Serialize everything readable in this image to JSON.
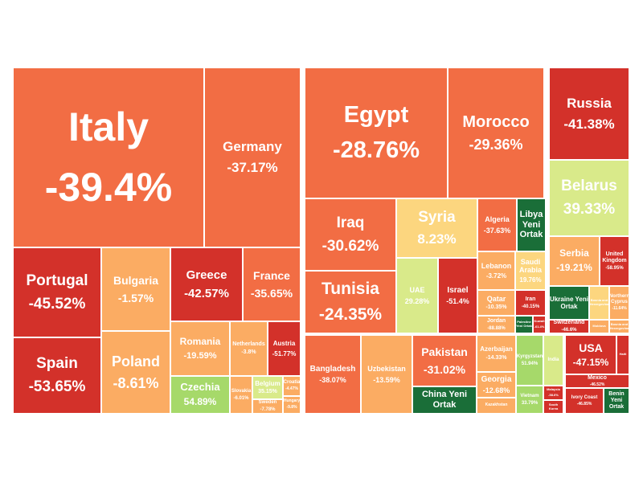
{
  "colors": {
    "dark_red": "#d3312a",
    "red_orange": "#f26d44",
    "orange": "#fbac63",
    "light_orange": "#fcd67f",
    "light_green": "#d9ea8a",
    "green": "#a6d96a",
    "dark_green": "#1a6e38",
    "background": "#ffffff"
  },
  "chart_data": {
    "type": "treemap",
    "groups": [
      {
        "items": [
          {
            "name": "Italy",
            "value": "-39.4%",
            "color": "red_orange"
          },
          {
            "name": "Germany",
            "value": "-37.17%",
            "color": "red_orange"
          },
          {
            "name": "Portugal",
            "value": "-45.52%",
            "color": "dark_red"
          },
          {
            "name": "Spain",
            "value": "-53.65%",
            "color": "dark_red"
          },
          {
            "name": "Bulgaria",
            "value": "-1.57%",
            "color": "orange"
          },
          {
            "name": "Poland",
            "value": "-8.61%",
            "color": "orange"
          },
          {
            "name": "Greece",
            "value": "-42.57%",
            "color": "dark_red"
          },
          {
            "name": "France",
            "value": "-35.65%",
            "color": "red_orange"
          },
          {
            "name": "Romania",
            "value": "-19.59%",
            "color": "orange"
          },
          {
            "name": "Netherlands",
            "value": "-3.8%",
            "color": "orange"
          },
          {
            "name": "Austria",
            "value": "-51.77%",
            "color": "dark_red"
          },
          {
            "name": "Czechia",
            "value": "54.89%",
            "color": "green"
          },
          {
            "name": "Slovakia",
            "value": "-6.01%",
            "color": "orange"
          },
          {
            "name": "Belgium",
            "value": "35.15%",
            "color": "light_green"
          },
          {
            "name": "Sweden",
            "value": "-7.78%",
            "color": "orange"
          },
          {
            "name": "Croatia",
            "value": "-4.47%",
            "color": "orange"
          },
          {
            "name": "Hungary",
            "value": "-9.8%",
            "color": "orange"
          }
        ]
      },
      {
        "items": [
          {
            "name": "Egypt",
            "value": "-28.76%",
            "color": "red_orange"
          },
          {
            "name": "Morocco",
            "value": "-29.36%",
            "color": "red_orange"
          },
          {
            "name": "Iraq",
            "value": "-30.62%",
            "color": "red_orange"
          },
          {
            "name": "Tunisia",
            "value": "-24.35%",
            "color": "red_orange"
          },
          {
            "name": "Syria",
            "value": "8.23%",
            "color": "light_orange"
          },
          {
            "name": "UAE",
            "value": "29.28%",
            "color": "light_green"
          },
          {
            "name": "Israel",
            "value": "-51.4%",
            "color": "dark_red"
          },
          {
            "name": "Algeria",
            "value": "-37.63%",
            "color": "red_orange"
          },
          {
            "name": "Libya Yeni Ortak",
            "value": "",
            "color": "dark_green"
          },
          {
            "name": "Lebanon",
            "value": "-3.72%",
            "color": "orange"
          },
          {
            "name": "Saudi Arabia",
            "value": "19.76%",
            "color": "light_orange"
          },
          {
            "name": "Qatar",
            "value": "-10.35%",
            "color": "orange"
          },
          {
            "name": "Iran",
            "value": "-40.15%",
            "color": "dark_red"
          },
          {
            "name": "Jordan",
            "value": "-88.88%",
            "color": "orange"
          },
          {
            "name": "Palestine Yeni Ortak",
            "value": "",
            "color": "dark_green"
          },
          {
            "name": "Kuwait",
            "value": "-61.4%",
            "color": "dark_red"
          }
        ]
      },
      {
        "items": [
          {
            "name": "Russia",
            "value": "-41.38%",
            "color": "dark_red"
          },
          {
            "name": "Belarus",
            "value": "39.33%",
            "color": "light_green"
          },
          {
            "name": "Serbia",
            "value": "-19.21%",
            "color": "orange"
          },
          {
            "name": "United Kingdom",
            "value": "-58.95%",
            "color": "dark_red"
          },
          {
            "name": "Ukraine Yeni Ortak",
            "value": "",
            "color": "dark_green"
          },
          {
            "name": "Bosnia and Herzegovina",
            "value": "",
            "color": "light_orange"
          },
          {
            "name": "Northern Cyprus",
            "value": "-11.64%",
            "color": "orange"
          },
          {
            "name": "Switzerland",
            "value": "-46.6%",
            "color": "dark_red"
          },
          {
            "name": "Moldova",
            "value": "",
            "color": "orange"
          },
          {
            "name": "Bosnia and Herzegovina",
            "value": "",
            "color": "orange"
          }
        ]
      },
      {
        "items": [
          {
            "name": "Bangladesh",
            "value": "-38.07%",
            "color": "red_orange"
          },
          {
            "name": "Uzbekistan",
            "value": "-13.59%",
            "color": "orange"
          },
          {
            "name": "Pakistan",
            "value": "-31.02%",
            "color": "red_orange"
          },
          {
            "name": "China Yeni Ortak",
            "value": "",
            "color": "dark_green"
          },
          {
            "name": "Azerbaijan",
            "value": "-14.33%",
            "color": "orange"
          },
          {
            "name": "Georgia",
            "value": "-12.68%",
            "color": "orange"
          },
          {
            "name": "Kazakhstan",
            "value": "",
            "color": "orange"
          },
          {
            "name": "Kyrgyzstan",
            "value": "51.94%",
            "color": "green"
          },
          {
            "name": "Vietnam",
            "value": "33.79%",
            "color": "green"
          },
          {
            "name": "India",
            "value": "",
            "color": "light_green"
          },
          {
            "name": "Malaysia",
            "value": "-58.6%",
            "color": "dark_red"
          },
          {
            "name": "South Korea",
            "value": "",
            "color": "dark_red"
          }
        ]
      },
      {
        "items": [
          {
            "name": "USA",
            "value": "-47.15%",
            "color": "dark_red"
          },
          {
            "name": "Haiti",
            "value": "",
            "color": "dark_red"
          },
          {
            "name": "Mexico",
            "value": "-46.52%",
            "color": "dark_red"
          },
          {
            "name": "Ivory Coast",
            "value": "-46.85%",
            "color": "dark_red"
          },
          {
            "name": "Benin Yeni Ortak",
            "value": "",
            "color": "dark_green"
          }
        ]
      }
    ]
  }
}
